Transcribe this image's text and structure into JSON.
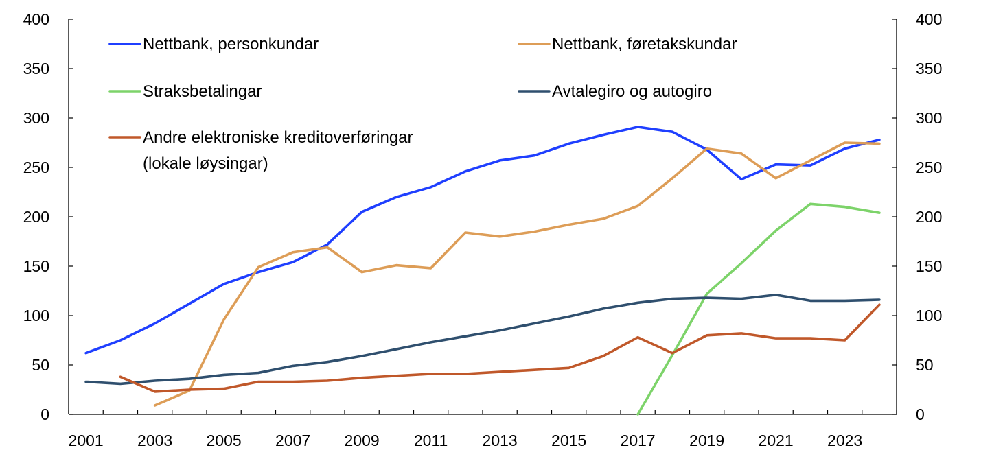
{
  "chart_data": {
    "type": "line",
    "title": "",
    "xlabel": "",
    "ylabel": "",
    "xlim": [
      2001,
      2024
    ],
    "ylim": [
      0,
      400
    ],
    "y_ticks": [
      0,
      50,
      100,
      150,
      200,
      250,
      300,
      350,
      400
    ],
    "x_tick_labels": [
      "2001",
      "2003",
      "2005",
      "2007",
      "2009",
      "2011",
      "2013",
      "2015",
      "2017",
      "2019",
      "2021",
      "2023"
    ],
    "secondary_y_axis": true,
    "grid": false,
    "legend_position": "top-left",
    "series": [
      {
        "name": "Nettbank, personkundar",
        "color": "#1f3fff",
        "x": [
          2001,
          2002,
          2003,
          2004,
          2005,
          2006,
          2007,
          2008,
          2009,
          2010,
          2011,
          2012,
          2013,
          2014,
          2015,
          2016,
          2017,
          2018,
          2019,
          2020,
          2021,
          2022,
          2023,
          2024
        ],
        "values": [
          62,
          75,
          92,
          112,
          132,
          144,
          154,
          172,
          205,
          220,
          230,
          246,
          257,
          262,
          274,
          283,
          291,
          286,
          268,
          238,
          253,
          252,
          269,
          278
        ]
      },
      {
        "name": "Nettbank, føretakskundar",
        "color": "#dd9d57",
        "x": [
          2003,
          2004,
          2005,
          2006,
          2007,
          2008,
          2009,
          2010,
          2011,
          2012,
          2013,
          2014,
          2015,
          2016,
          2017,
          2018,
          2019,
          2020,
          2021,
          2022,
          2023,
          2024
        ],
        "values": [
          9,
          24,
          96,
          149,
          164,
          169,
          144,
          151,
          148,
          184,
          180,
          185,
          192,
          198,
          211,
          239,
          269,
          264,
          239,
          257,
          275,
          274
        ]
      },
      {
        "name": "Straksbetalingar",
        "color": "#7dd36a",
        "x": [
          2017,
          2018,
          2019,
          2020,
          2021,
          2022,
          2023,
          2024
        ],
        "values": [
          0,
          60,
          122,
          153,
          186,
          213,
          210,
          204
        ]
      },
      {
        "name": "Avtalegiro og autogiro",
        "color": "#2f4f6e",
        "x": [
          2001,
          2002,
          2003,
          2004,
          2005,
          2006,
          2007,
          2008,
          2009,
          2010,
          2011,
          2012,
          2013,
          2014,
          2015,
          2016,
          2017,
          2018,
          2019,
          2020,
          2021,
          2022,
          2023,
          2024
        ],
        "values": [
          33,
          31,
          34,
          36,
          40,
          42,
          49,
          53,
          59,
          66,
          73,
          79,
          85,
          92,
          99,
          107,
          113,
          117,
          118,
          117,
          121,
          115,
          115,
          116
        ]
      },
      {
        "name": "Andre elektroniske kreditoverføringar (lokale løysingar)",
        "legend_lines": [
          "Andre elektroniske kreditoverføringar",
          "(lokale løysingar)"
        ],
        "color": "#c0582a",
        "x": [
          2002,
          2003,
          2004,
          2005,
          2006,
          2007,
          2008,
          2009,
          2010,
          2011,
          2012,
          2013,
          2014,
          2015,
          2016,
          2017,
          2018,
          2019,
          2020,
          2021,
          2022,
          2023,
          2024
        ],
        "values": [
          38,
          23,
          25,
          26,
          33,
          33,
          34,
          37,
          39,
          41,
          41,
          43,
          45,
          47,
          59,
          78,
          62,
          80,
          82,
          77,
          77,
          75,
          111
        ]
      }
    ]
  }
}
